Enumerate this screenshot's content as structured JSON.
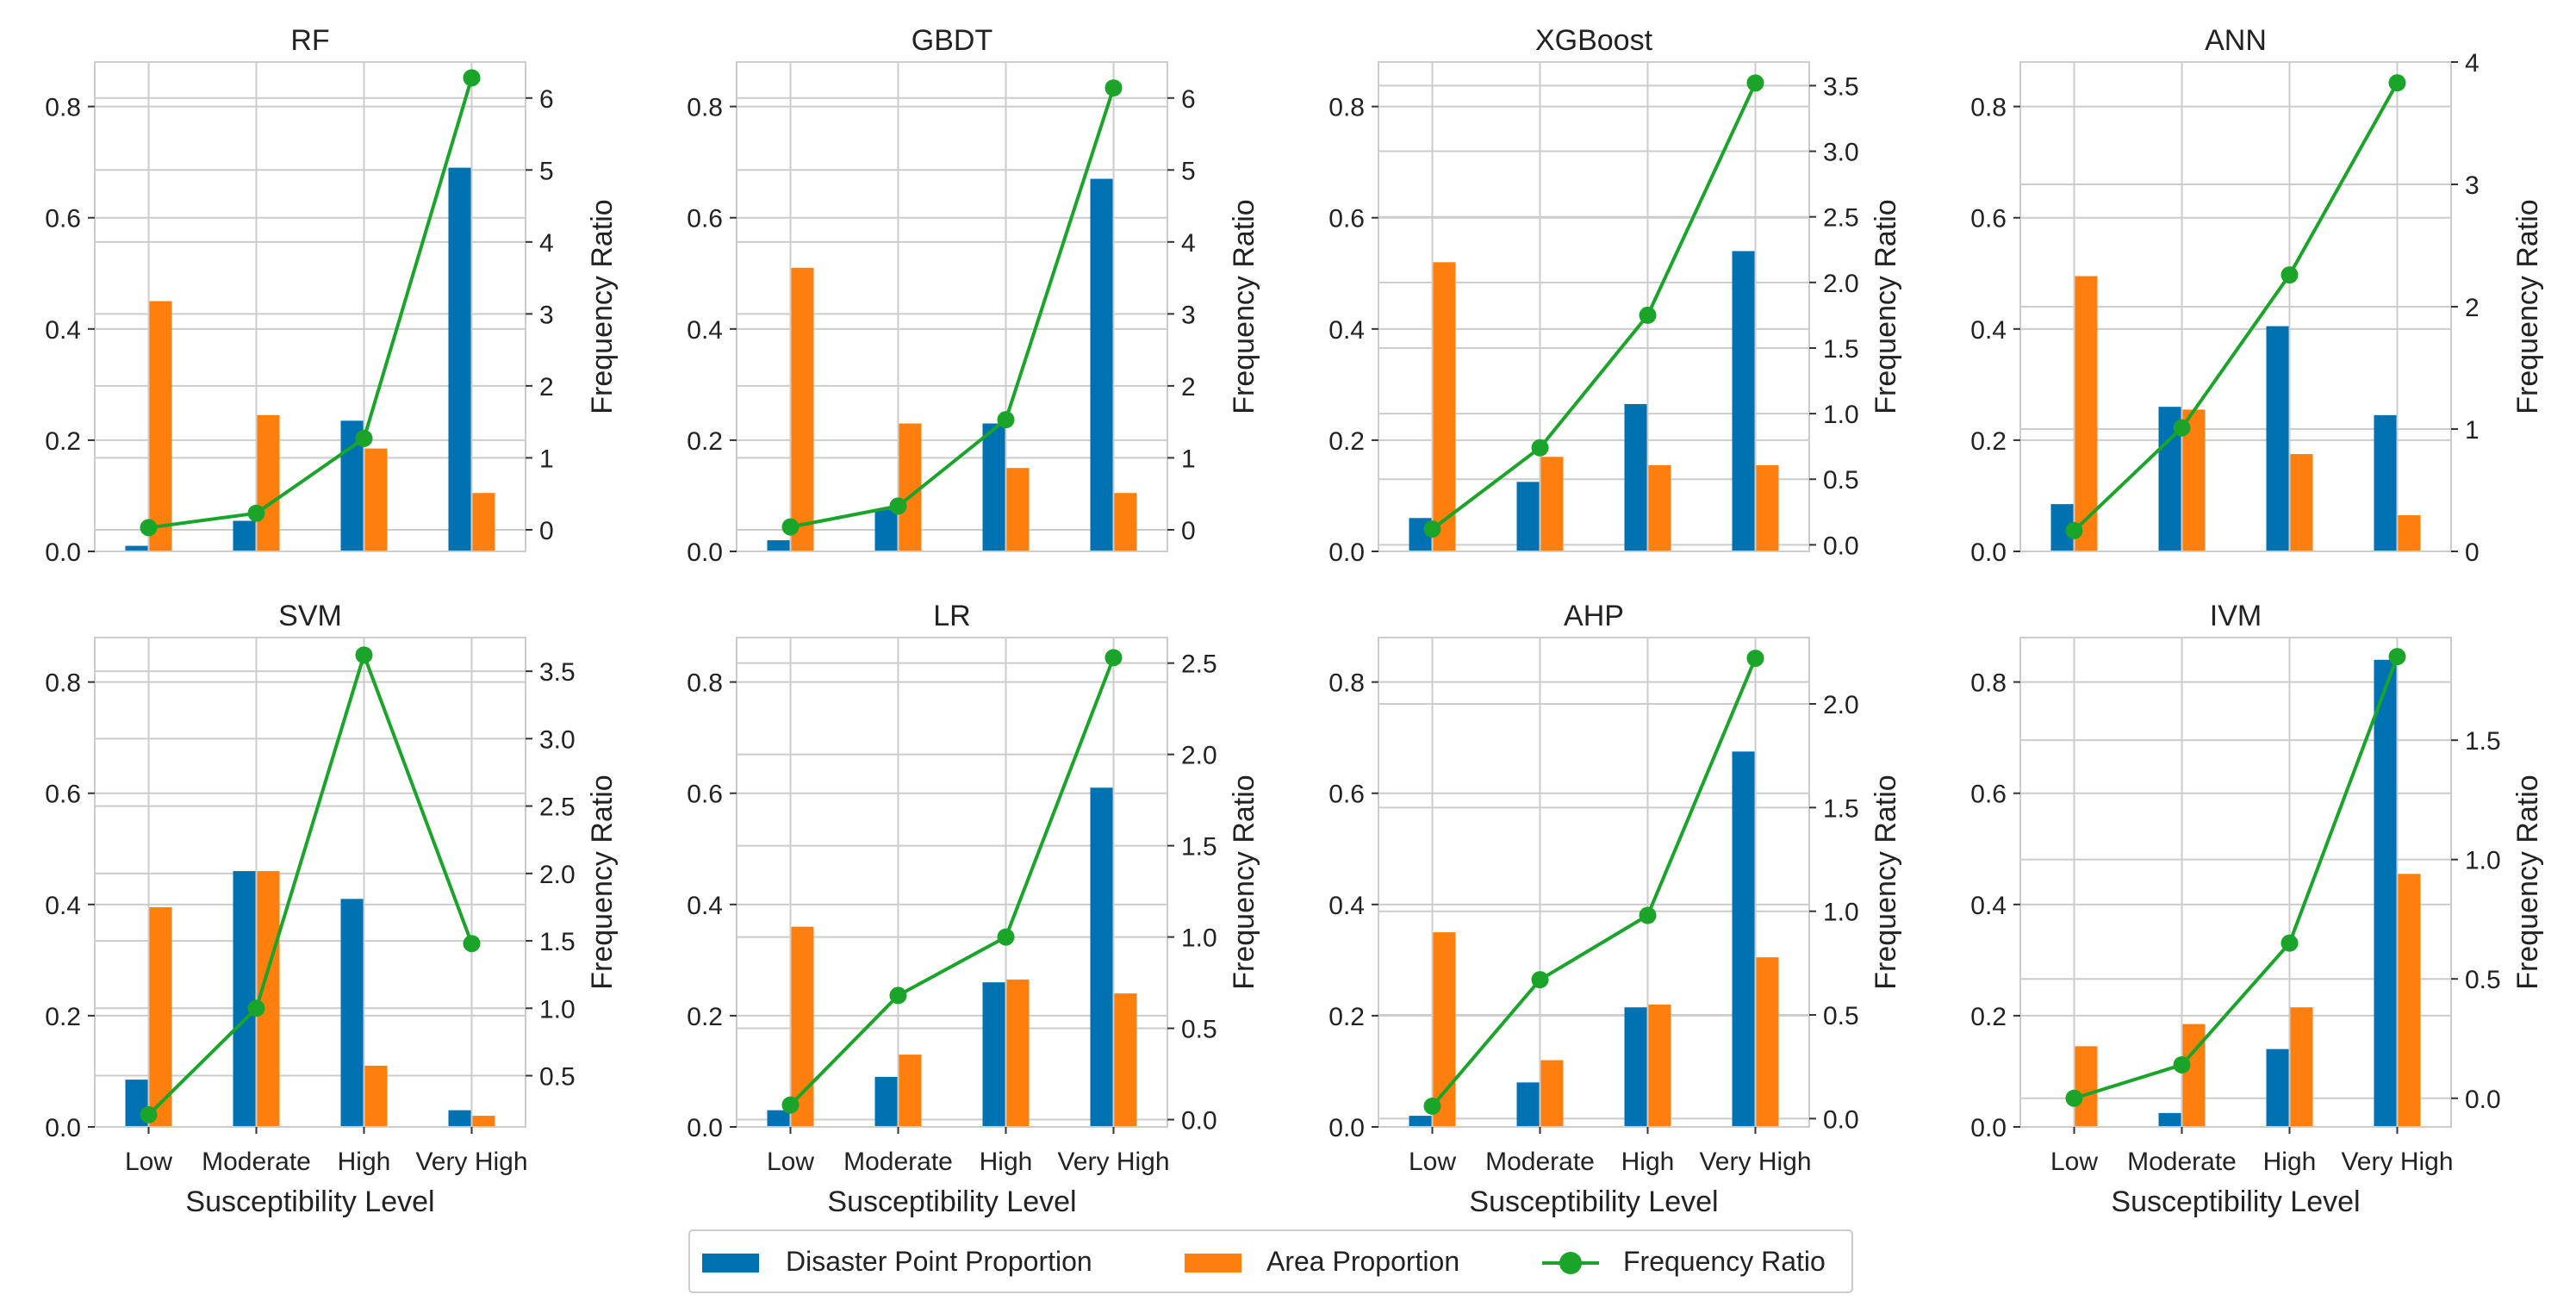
{
  "colors": {
    "disaster": "#0072b2",
    "area": "#ff7f0e",
    "frequency": "#1aa52a",
    "grid": "#cccccc",
    "axis": "#cccccc"
  },
  "legend": {
    "disaster_label": "Disaster Point Proportion",
    "area_label": "Area Proportion",
    "frequency_label": "Frequency Ratio"
  },
  "chart_data": [
    {
      "type": "bar+line",
      "title": "RF",
      "categories": [
        "Low",
        "Moderate",
        "High",
        "Very High"
      ],
      "xlabel": "",
      "ylabel": "",
      "y2label": "Frequency Ratio",
      "ylim": [
        0,
        0.88
      ],
      "yticks": [
        "0.0",
        "0.2",
        "0.4",
        "0.6",
        "0.8"
      ],
      "y2lim": [
        -0.3,
        6.5
      ],
      "y2ticks": [
        "0",
        "1",
        "2",
        "3",
        "4",
        "5",
        "6"
      ],
      "series": [
        {
          "name": "Disaster Point Proportion",
          "values": [
            0.01,
            0.055,
            0.235,
            0.69
          ]
        },
        {
          "name": "Area Proportion",
          "values": [
            0.45,
            0.245,
            0.185,
            0.105
          ]
        },
        {
          "name": "Frequency Ratio",
          "values": [
            0.03,
            0.23,
            1.27,
            6.28
          ]
        }
      ]
    },
    {
      "type": "bar+line",
      "title": "GBDT",
      "categories": [
        "Low",
        "Moderate",
        "High",
        "Very High"
      ],
      "xlabel": "",
      "ylabel": "",
      "y2label": "Frequency Ratio",
      "ylim": [
        0,
        0.88
      ],
      "yticks": [
        "0.0",
        "0.2",
        "0.4",
        "0.6",
        "0.8"
      ],
      "y2lim": [
        -0.3,
        6.5
      ],
      "y2ticks": [
        "0",
        "1",
        "2",
        "3",
        "4",
        "5",
        "6"
      ],
      "series": [
        {
          "name": "Disaster Point Proportion",
          "values": [
            0.02,
            0.075,
            0.23,
            0.67
          ]
        },
        {
          "name": "Area Proportion",
          "values": [
            0.51,
            0.23,
            0.15,
            0.105
          ]
        },
        {
          "name": "Frequency Ratio",
          "values": [
            0.04,
            0.33,
            1.53,
            6.14
          ]
        }
      ]
    },
    {
      "type": "bar+line",
      "title": "XGBoost",
      "categories": [
        "Low",
        "Moderate",
        "High",
        "Very High"
      ],
      "xlabel": "",
      "ylabel": "",
      "y2label": "Frequency Ratio",
      "ylim": [
        0,
        0.88
      ],
      "yticks": [
        "0.0",
        "0.2",
        "0.4",
        "0.6",
        "0.8"
      ],
      "y2lim": [
        -0.05,
        3.68
      ],
      "y2ticks": [
        "0.0",
        "0.5",
        "1.0",
        "1.5",
        "2.0",
        "2.5",
        "3.0",
        "3.5"
      ],
      "series": [
        {
          "name": "Disaster Point Proportion",
          "values": [
            0.06,
            0.125,
            0.265,
            0.54
          ]
        },
        {
          "name": "Area Proportion",
          "values": [
            0.52,
            0.17,
            0.155,
            0.155
          ]
        },
        {
          "name": "Frequency Ratio",
          "values": [
            0.12,
            0.74,
            1.75,
            3.52
          ]
        }
      ]
    },
    {
      "type": "bar+line",
      "title": "ANN",
      "categories": [
        "Low",
        "Moderate",
        "High",
        "Very High"
      ],
      "xlabel": "",
      "ylabel": "",
      "y2label": "Frequency Ratio",
      "ylim": [
        0,
        0.88
      ],
      "yticks": [
        "0.0",
        "0.2",
        "0.4",
        "0.6",
        "0.8"
      ],
      "y2lim": [
        0,
        4.0
      ],
      "y2ticks": [
        "0",
        "1",
        "2",
        "3",
        "4"
      ],
      "series": [
        {
          "name": "Disaster Point Proportion",
          "values": [
            0.085,
            0.26,
            0.405,
            0.245
          ]
        },
        {
          "name": "Area Proportion",
          "values": [
            0.495,
            0.255,
            0.175,
            0.065
          ]
        },
        {
          "name": "Frequency Ratio",
          "values": [
            0.17,
            1.01,
            2.26,
            3.83
          ]
        }
      ]
    },
    {
      "type": "bar+line",
      "title": "SVM",
      "categories": [
        "Low",
        "Moderate",
        "High",
        "Very High"
      ],
      "xlabel": "Susceptibility Level",
      "ylabel": "",
      "y2label": "Frequency Ratio",
      "ylim": [
        0,
        0.88
      ],
      "yticks": [
        "0.0",
        "0.2",
        "0.4",
        "0.6",
        "0.8"
      ],
      "y2lim": [
        0.12,
        3.75
      ],
      "y2ticks": [
        "0.5",
        "1.0",
        "1.5",
        "2.0",
        "2.5",
        "3.0",
        "3.5"
      ],
      "series": [
        {
          "name": "Disaster Point Proportion",
          "values": [
            0.085,
            0.46,
            0.41,
            0.03
          ]
        },
        {
          "name": "Area Proportion",
          "values": [
            0.395,
            0.46,
            0.11,
            0.02
          ]
        },
        {
          "name": "Frequency Ratio",
          "values": [
            0.21,
            1.0,
            3.62,
            1.48
          ]
        }
      ]
    },
    {
      "type": "bar+line",
      "title": "LR",
      "categories": [
        "Low",
        "Moderate",
        "High",
        "Very High"
      ],
      "xlabel": "Susceptibility Level",
      "ylabel": "",
      "y2label": "Frequency Ratio",
      "ylim": [
        0,
        0.88
      ],
      "yticks": [
        "0.0",
        "0.2",
        "0.4",
        "0.6",
        "0.8"
      ],
      "y2lim": [
        -0.04,
        2.64
      ],
      "y2ticks": [
        "0.0",
        "0.5",
        "1.0",
        "1.5",
        "2.0",
        "2.5"
      ],
      "series": [
        {
          "name": "Disaster Point Proportion",
          "values": [
            0.03,
            0.09,
            0.26,
            0.61
          ]
        },
        {
          "name": "Area Proportion",
          "values": [
            0.36,
            0.13,
            0.265,
            0.24
          ]
        },
        {
          "name": "Frequency Ratio",
          "values": [
            0.08,
            0.68,
            1.0,
            2.53
          ]
        }
      ]
    },
    {
      "type": "bar+line",
      "title": "AHP",
      "categories": [
        "Low",
        "Moderate",
        "High",
        "Very High"
      ],
      "xlabel": "Susceptibility Level",
      "ylabel": "",
      "y2label": "Frequency Ratio",
      "ylim": [
        0,
        0.88
      ],
      "yticks": [
        "0.0",
        "0.2",
        "0.4",
        "0.6",
        "0.8"
      ],
      "y2lim": [
        -0.04,
        2.32
      ],
      "y2ticks": [
        "0.0",
        "0.5",
        "1.0",
        "1.5",
        "2.0"
      ],
      "series": [
        {
          "name": "Disaster Point Proportion",
          "values": [
            0.02,
            0.08,
            0.215,
            0.675
          ]
        },
        {
          "name": "Area Proportion",
          "values": [
            0.35,
            0.12,
            0.22,
            0.305
          ]
        },
        {
          "name": "Frequency Ratio",
          "values": [
            0.06,
            0.67,
            0.98,
            2.22
          ]
        }
      ]
    },
    {
      "type": "bar+line",
      "title": "IVM",
      "categories": [
        "Low",
        "Moderate",
        "High",
        "Very High"
      ],
      "xlabel": "Susceptibility Level",
      "ylabel": "",
      "y2label": "Frequency Ratio",
      "ylim": [
        0,
        0.88
      ],
      "yticks": [
        "0.0",
        "0.2",
        "0.4",
        "0.6",
        "0.8"
      ],
      "y2lim": [
        -0.12,
        1.93
      ],
      "y2ticks": [
        "0.0",
        "0.5",
        "1.0",
        "1.5"
      ],
      "series": [
        {
          "name": "Disaster Point Proportion",
          "values": [
            0.0,
            0.025,
            0.14,
            0.84
          ]
        },
        {
          "name": "Area Proportion",
          "values": [
            0.145,
            0.185,
            0.215,
            0.455
          ]
        },
        {
          "name": "Frequency Ratio",
          "values": [
            0.0,
            0.14,
            0.65,
            1.85
          ]
        }
      ]
    }
  ]
}
